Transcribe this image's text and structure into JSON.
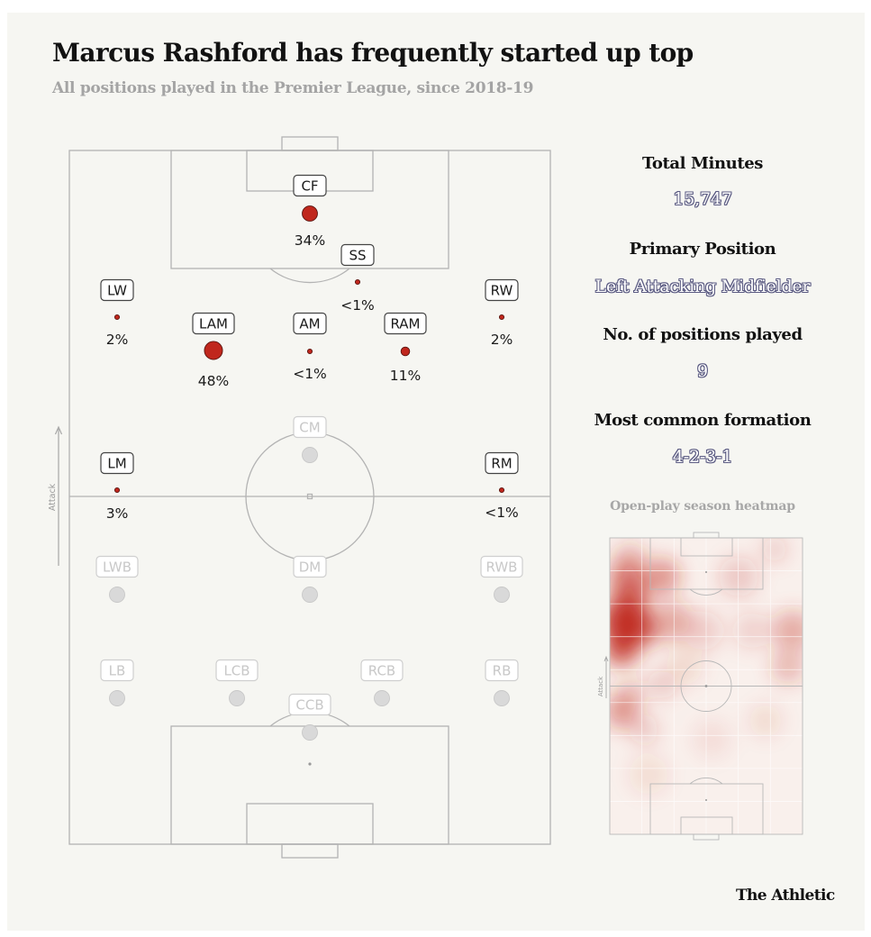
{
  "header": {
    "title": "Marcus Rashford has frequently started up top",
    "subtitle": "All positions played in the Premier League, since 2018-19"
  },
  "chart_data": {
    "type": "positional-pitch",
    "attack_label": "Attack",
    "positions": [
      {
        "label": "CF",
        "value_label": "34%",
        "share": 34,
        "active": true
      },
      {
        "label": "SS",
        "value_label": "<1%",
        "share": 0.5,
        "active": true
      },
      {
        "label": "LW",
        "value_label": "2%",
        "share": 2,
        "active": true
      },
      {
        "label": "RW",
        "value_label": "2%",
        "share": 2,
        "active": true
      },
      {
        "label": "LAM",
        "value_label": "48%",
        "share": 48,
        "active": true
      },
      {
        "label": "AM",
        "value_label": "<1%",
        "share": 0.5,
        "active": true
      },
      {
        "label": "RAM",
        "value_label": "11%",
        "share": 11,
        "active": true
      },
      {
        "label": "LM",
        "value_label": "3%",
        "share": 3,
        "active": true
      },
      {
        "label": "RM",
        "value_label": "<1%",
        "share": 0.5,
        "active": true
      },
      {
        "label": "CM",
        "active": false
      },
      {
        "label": "LWB",
        "active": false
      },
      {
        "label": "DM",
        "active": false
      },
      {
        "label": "RWB",
        "active": false
      },
      {
        "label": "LB",
        "active": false
      },
      {
        "label": "LCB",
        "active": false
      },
      {
        "label": "RCB",
        "active": false
      },
      {
        "label": "RB",
        "active": false
      },
      {
        "label": "CCB",
        "active": false
      }
    ],
    "colors": {
      "active_dot": "#c0271d",
      "inactive_dot": "#d9d9d9",
      "pitch_line": "#b3b3b3",
      "background": "#f6f6f2"
    }
  },
  "stats": {
    "total_minutes_label": "Total Minutes",
    "total_minutes_value": "15,747",
    "primary_position_label": "Primary Position",
    "primary_position_value": "Left Attacking Midfielder",
    "positions_played_label": "No. of positions played",
    "positions_played_value": "9",
    "formation_label": "Most common formation",
    "formation_value": "4-2-3-1"
  },
  "heatmap": {
    "title": "Open-play season heatmap",
    "attack_label": "Attack",
    "intensity_color": "#c0271d"
  },
  "footer": {
    "brand": "The Athletic"
  }
}
